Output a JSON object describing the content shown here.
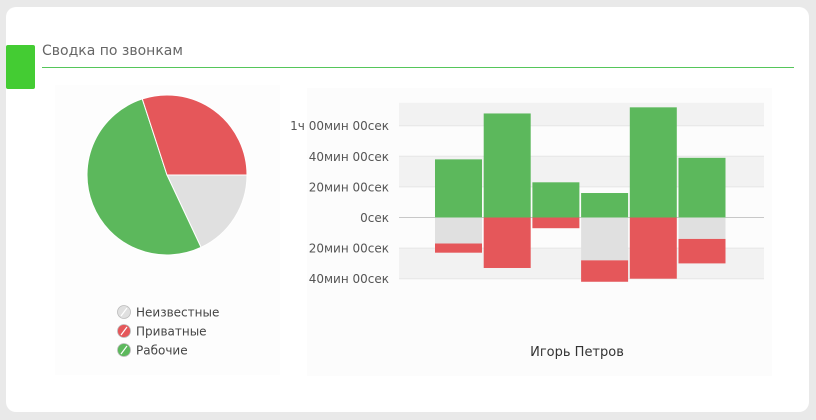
{
  "header": {
    "title": "Сводка по звонкам"
  },
  "colors": {
    "accent": "#44cc33",
    "unknown": "#e0e0e0",
    "private": "#e5575a",
    "work": "#5cb85c"
  },
  "chart_data": [
    {
      "type": "pie",
      "slices": [
        {
          "label": "Неизвестные",
          "value": 18,
          "color": "#e0e0e0"
        },
        {
          "label": "Приватные",
          "value": 30,
          "color": "#e5575a"
        },
        {
          "label": "Рабочие",
          "value": 52,
          "color": "#5cb85c"
        }
      ],
      "legend": [
        "Неизвестные",
        "Приватные",
        "Рабочие"
      ],
      "legend_position": "bottom"
    },
    {
      "type": "bar",
      "stacked": true,
      "xlabel": "Игорь Петров",
      "y_unit": "minutes",
      "ylim": [
        -45,
        75
      ],
      "yticks": [
        {
          "value": 60,
          "label": "1ч 00мин 00сек"
        },
        {
          "value": 40,
          "label": "40мин 00сек"
        },
        {
          "value": 20,
          "label": "20мин 00сек"
        },
        {
          "value": 0,
          "label": "0сек"
        },
        {
          "value": -20,
          "label": "20мин 00сек"
        },
        {
          "value": -40,
          "label": "40мин 00сек"
        }
      ],
      "series": [
        {
          "name": "Рабочие",
          "color": "#5cb85c",
          "values": [
            38,
            68,
            23,
            16,
            72,
            39
          ]
        },
        {
          "name": "Неизвестные",
          "color": "#e0e0e0",
          "values": [
            -17,
            0,
            0,
            -28,
            0,
            -14
          ]
        },
        {
          "name": "Приватные",
          "color": "#e5575a",
          "values": [
            -6,
            -33,
            -7,
            -14,
            -40,
            -16
          ]
        }
      ],
      "grid": true
    }
  ]
}
